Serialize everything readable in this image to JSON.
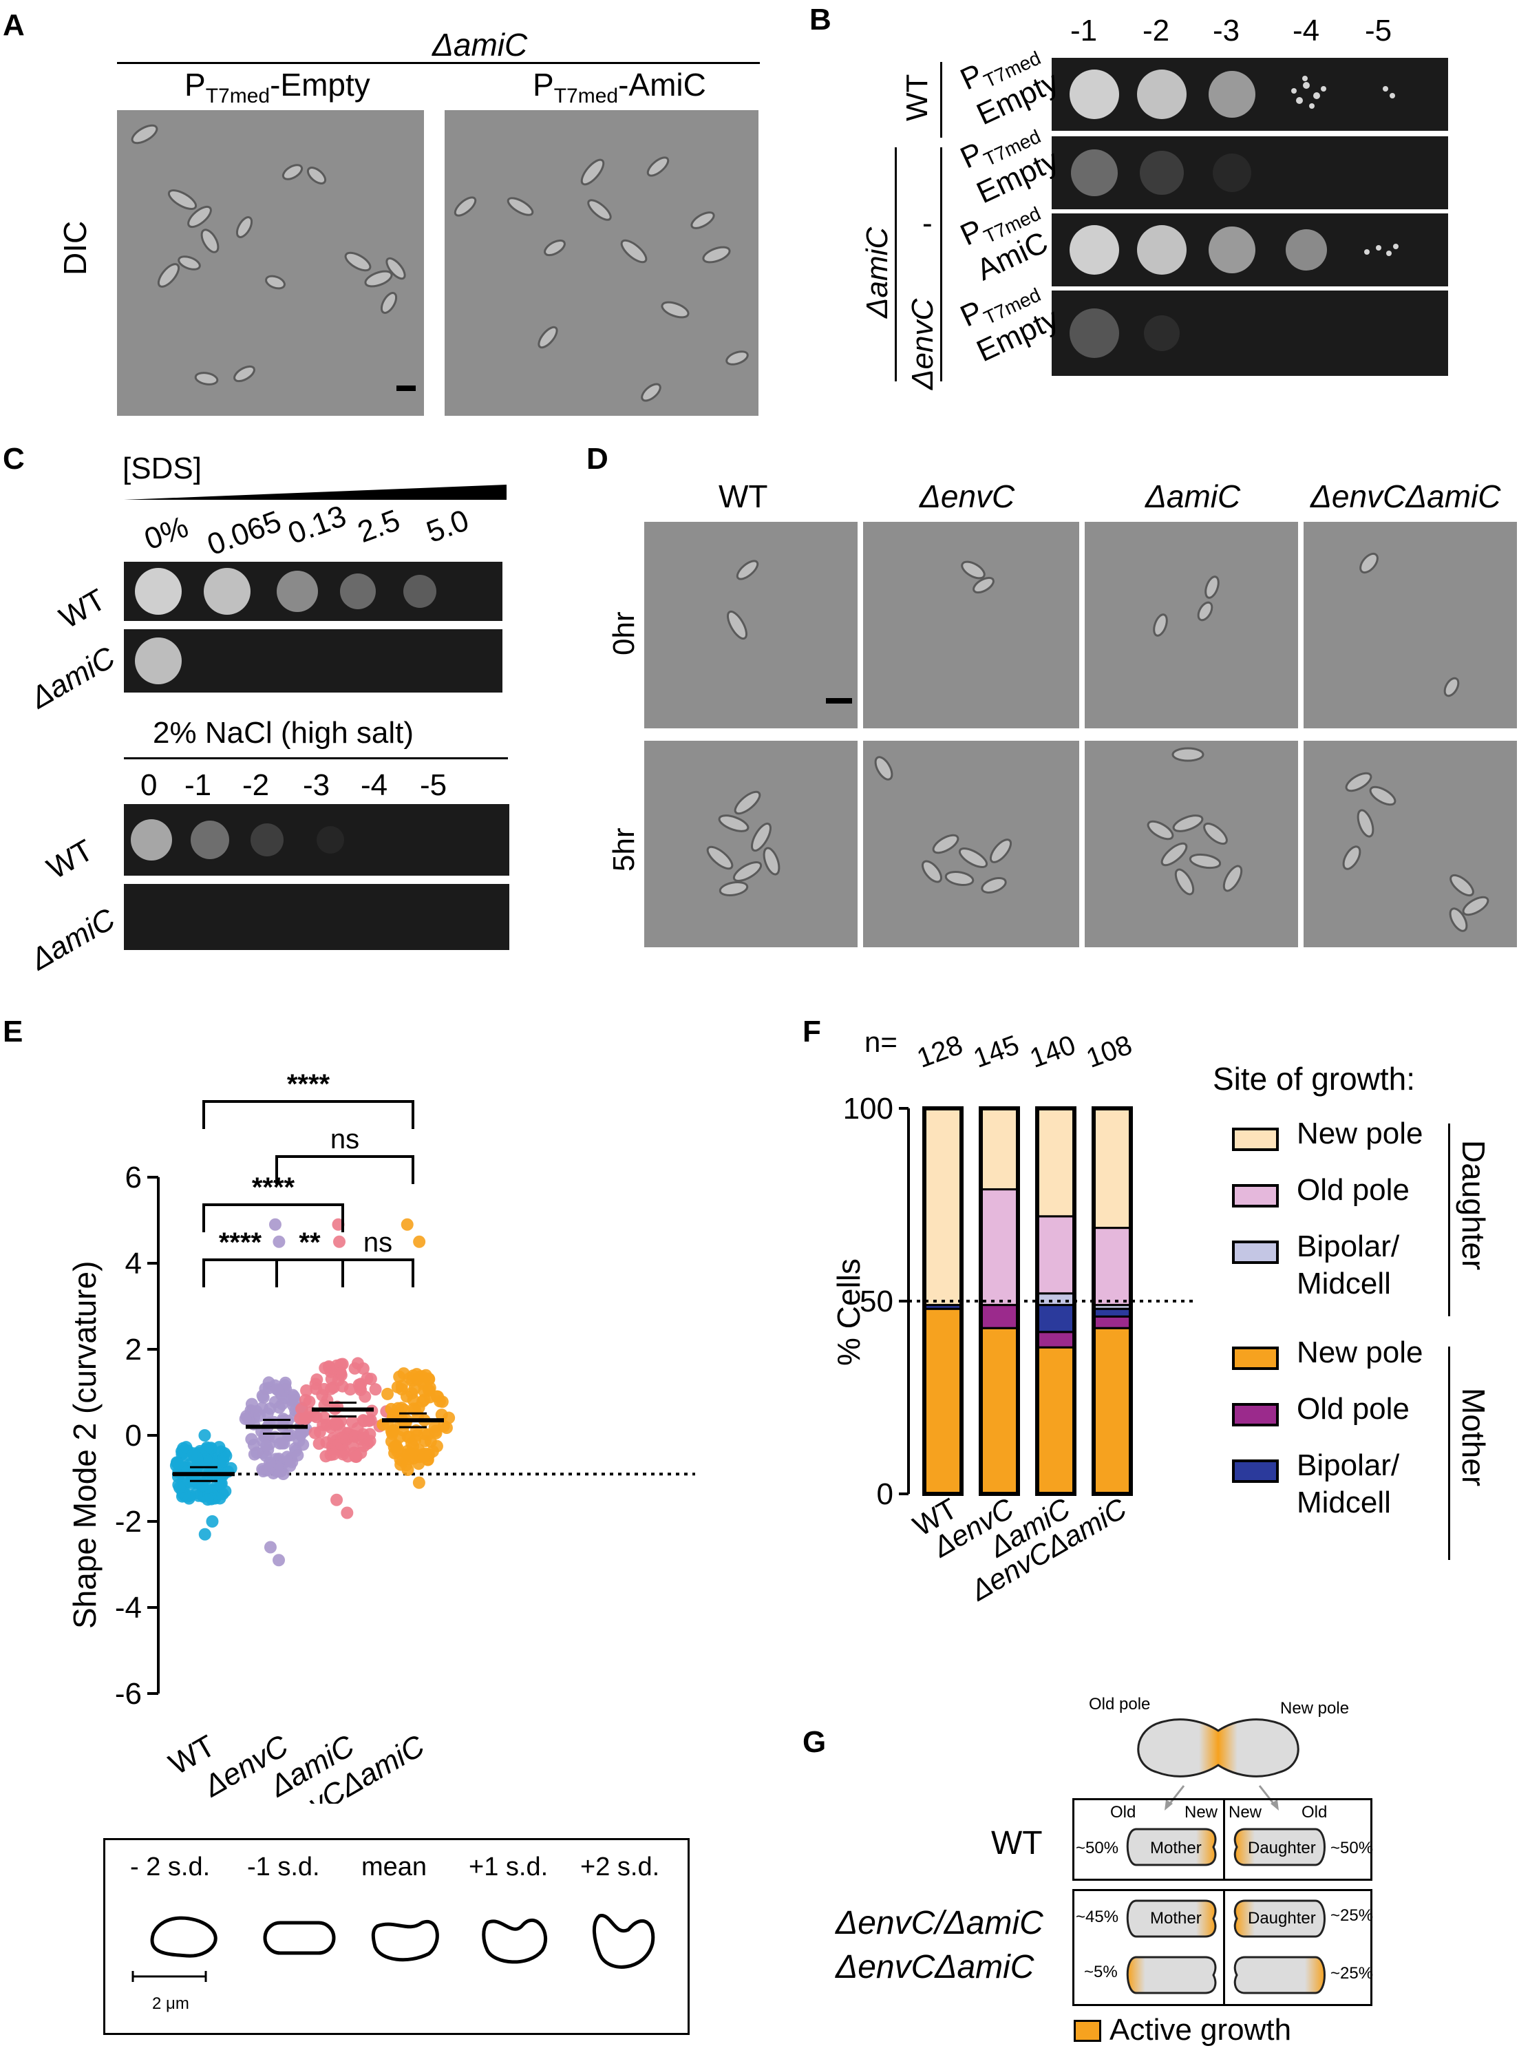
{
  "panels": {
    "A": "A",
    "B": "B",
    "C": "C",
    "D": "D",
    "E": "E",
    "F": "F",
    "G": "G"
  },
  "A": {
    "strain": "ΔamiC",
    "col1_main": "P",
    "col1_sub": "T7med",
    "col1_suffix": "-Empty",
    "col2_main": "P",
    "col2_sub": "T7med",
    "col2_suffix": "-AmiC",
    "row_label": "DIC"
  },
  "B": {
    "dilutions": [
      "-1",
      "-2",
      "-3",
      "-4",
      "-5"
    ],
    "rows": [
      {
        "strain": "WT",
        "plasmid_p": "P",
        "plasmid_sub": "T7med",
        "plasmid_name": "Empty"
      },
      {
        "strain": "",
        "plasmid_p": "P",
        "plasmid_sub": "T7med",
        "plasmid_name": "Empty"
      },
      {
        "strain": "",
        "plasmid_p": "P",
        "plasmid_sub": "T7med",
        "plasmid_name": "AmiC"
      },
      {
        "strain": "",
        "plasmid_p": "P",
        "plasmid_sub": "T7med",
        "plasmid_name": "Empty"
      }
    ],
    "group_amiC": "ΔamiC",
    "group_dash": "-",
    "group_envC": "ΔenvC"
  },
  "C": {
    "sds_title": "[SDS]",
    "sds_conc": [
      "0%",
      "0.065",
      "0.13",
      "2.5",
      "5.0"
    ],
    "salt_title": "2% NaCl (high salt)",
    "salt_dilutions": [
      "0",
      "-1",
      "-2",
      "-3",
      "-4",
      "-5"
    ],
    "strains": [
      "WT",
      "ΔamiC"
    ]
  },
  "D": {
    "columns": [
      "WT",
      "ΔenvC",
      "ΔamiC",
      "ΔenvCΔamiC"
    ],
    "rows": [
      "0hr",
      "5hr"
    ]
  },
  "E": {
    "chart_data": {
      "type": "scatter",
      "ylabel": "Shape Mode 2 (curvature)",
      "ylim": [
        -6,
        6
      ],
      "yticks": [
        "6",
        "4",
        "2",
        "0",
        "-2",
        "-4",
        "-6"
      ],
      "categories": [
        "WT",
        "ΔenvC",
        "ΔamiC",
        "ΔenvCΔamiC"
      ],
      "means": [
        -0.9,
        0.2,
        0.6,
        0.35
      ],
      "ranges": [
        [
          -2.3,
          0.0
        ],
        [
          -2.9,
          4.9
        ],
        [
          -1.8,
          4.9
        ],
        [
          -1.1,
          4.9
        ]
      ],
      "reference_line": -0.9,
      "comparisons": [
        {
          "a": "WT",
          "b": "ΔenvCΔamiC",
          "label": "****"
        },
        {
          "a": "ΔenvC",
          "b": "ΔenvCΔamiC",
          "label": "ns"
        },
        {
          "a": "WT",
          "b": "ΔamiC",
          "label": "****"
        },
        {
          "a": "WT",
          "b": "ΔenvC",
          "label": "****"
        },
        {
          "a": "ΔenvC",
          "b": "ΔamiC",
          "label": "**"
        },
        {
          "a": "ΔamiC",
          "b": "ΔenvCΔamiC",
          "label": "ns"
        }
      ],
      "colors": [
        "#16a9d8",
        "#a897cc",
        "#ec7a8a",
        "#f7a21c"
      ]
    },
    "shape_labels": [
      "- 2 s.d.",
      "-1 s.d.",
      "mean",
      "+1 s.d.",
      "+2 s.d."
    ],
    "scale_bar": "2 μm"
  },
  "F": {
    "chart_data": {
      "type": "bar",
      "title": "",
      "ylabel": "% Cells",
      "ylim": [
        0,
        100
      ],
      "yticks": [
        "100",
        "50",
        "0"
      ],
      "categories": [
        "WT",
        "ΔenvC",
        "ΔamiC",
        "ΔenvCΔamiC"
      ],
      "n_label": "n=",
      "n": [
        "128",
        "145",
        "140",
        "108"
      ],
      "series": [
        {
          "name": "Mother New pole",
          "color": "#f6a21f",
          "values": [
            48,
            43,
            38,
            43
          ]
        },
        {
          "name": "Mother Old pole",
          "color": "#9b2a8c",
          "values": [
            0,
            6,
            4,
            3
          ]
        },
        {
          "name": "Mother Bipolar/Midcell",
          "color": "#2b3a9c",
          "values": [
            1,
            0,
            7,
            2
          ]
        },
        {
          "name": "Daughter Bipolar/Midcell",
          "color": "#c4c6e4",
          "values": [
            0,
            0,
            3,
            1
          ]
        },
        {
          "name": "Daughter Old pole",
          "color": "#e5b8dc",
          "values": [
            0,
            30,
            20,
            20
          ]
        },
        {
          "name": "Daughter New pole",
          "color": "#fde3bb",
          "values": [
            51,
            21,
            28,
            31
          ]
        }
      ],
      "reference_line": 50
    },
    "legend_title": "Site of growth:",
    "daughter_label": "Daughter",
    "mother_label": "Mother",
    "legend_items": [
      {
        "text": "New pole",
        "color": "#fde3bb"
      },
      {
        "text": "Old pole",
        "color": "#e5b8dc"
      },
      {
        "text": "Bipolar/",
        "text2": "Midcell",
        "color": "#c4c6e4"
      },
      {
        "text": "New pole",
        "color": "#f6a21f"
      },
      {
        "text": "Old pole",
        "color": "#9b2a8c"
      },
      {
        "text": "Bipolar/",
        "text2": "Midcell",
        "color": "#2b3a9c"
      }
    ]
  },
  "G": {
    "old_pole": "Old pole",
    "new_pole": "New pole",
    "wt": "WT",
    "mut1": "ΔenvC/ΔamiC",
    "mut2": "ΔenvCΔamiC",
    "old": "Old",
    "new": "New",
    "new2": "New",
    "old2": "Old",
    "mother": "Mother",
    "daughter": "Daughter",
    "wt_left": "~50%",
    "wt_right": "~50%",
    "m_tl": "~45%",
    "m_bl": "~5%",
    "m_tr": "~25%",
    "m_br": "~25%",
    "legend": "Active growth",
    "growth_color": "#f6a21f"
  }
}
